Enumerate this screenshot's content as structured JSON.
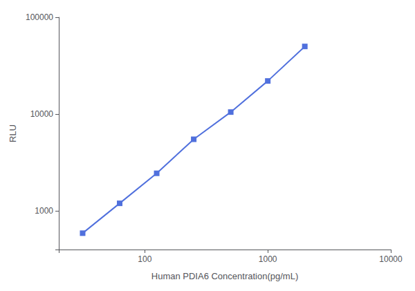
{
  "chart_data": {
    "type": "line",
    "xlabel": "Human PDIA6 Concentration(pg/mL)",
    "ylabel": "RLU",
    "x": [
      31.25,
      62.5,
      125,
      250,
      500,
      1000,
      2000
    ],
    "values": [
      590,
      1200,
      2450,
      5500,
      10500,
      22000,
      50000
    ],
    "xlim": [
      20,
      10000
    ],
    "ylim": [
      400,
      100000
    ],
    "xticks": [
      100,
      1000,
      10000
    ],
    "yticks": [
      1000,
      10000,
      100000
    ],
    "log": true,
    "grid": false,
    "marker": "square"
  }
}
